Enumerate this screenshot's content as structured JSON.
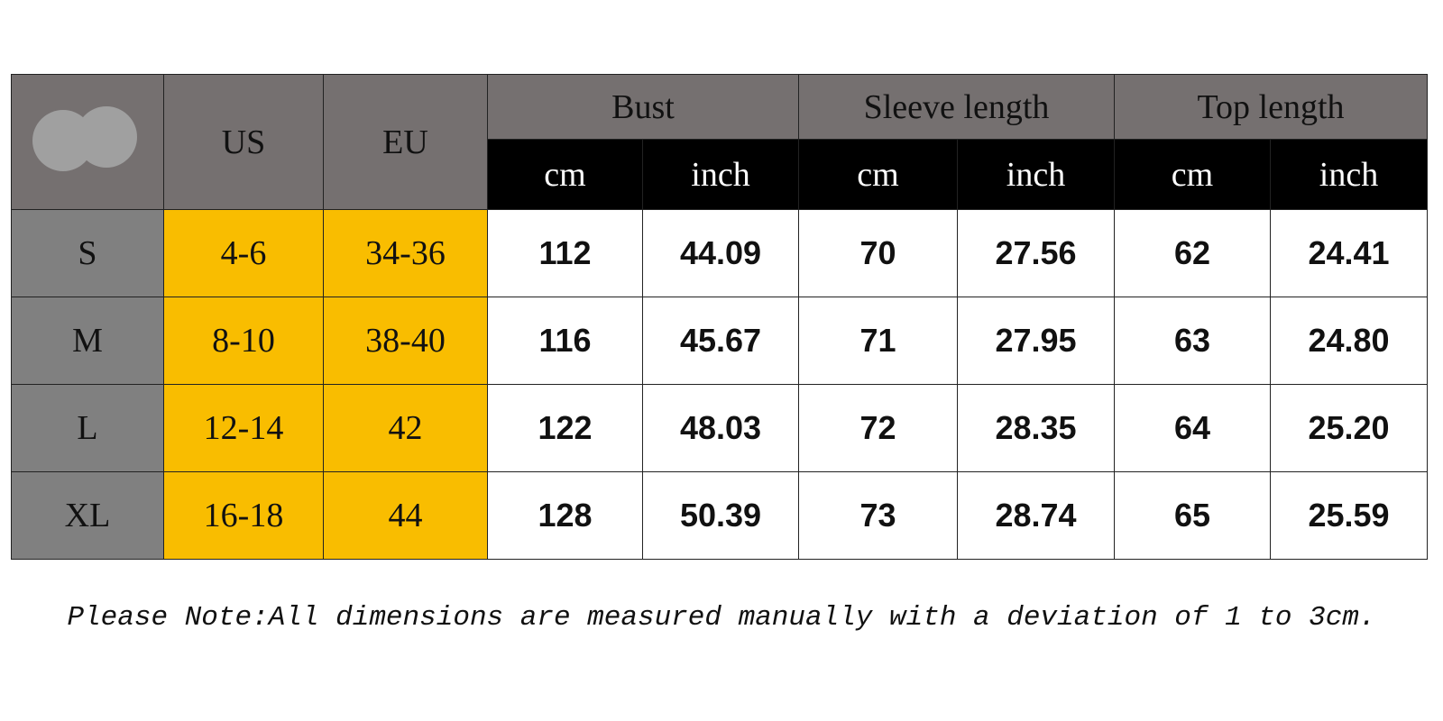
{
  "table": {
    "size_columns": [
      "US",
      "EU"
    ],
    "groups": [
      {
        "label": "Bust",
        "units": [
          "cm",
          "inch"
        ]
      },
      {
        "label": "Sleeve length",
        "units": [
          "cm",
          "inch"
        ]
      },
      {
        "label": "Top length",
        "units": [
          "cm",
          "inch"
        ]
      }
    ],
    "rows": [
      {
        "size": "S",
        "us": "4-6",
        "eu": "34-36",
        "values": [
          "112",
          "44.09",
          "70",
          "27.56",
          "62",
          "24.41"
        ]
      },
      {
        "size": "M",
        "us": "8-10",
        "eu": "38-40",
        "values": [
          "116",
          "45.67",
          "71",
          "27.95",
          "63",
          "24.80"
        ]
      },
      {
        "size": "L",
        "us": "12-14",
        "eu": "42",
        "values": [
          "122",
          "48.03",
          "72",
          "28.35",
          "64",
          "25.20"
        ]
      },
      {
        "size": "XL",
        "us": "16-18",
        "eu": "44",
        "values": [
          "128",
          "50.39",
          "73",
          "28.74",
          "65",
          "25.59"
        ]
      }
    ]
  },
  "note": "Please Note:All dimensions are measured manually with a deviation of 1 to 3cm."
}
